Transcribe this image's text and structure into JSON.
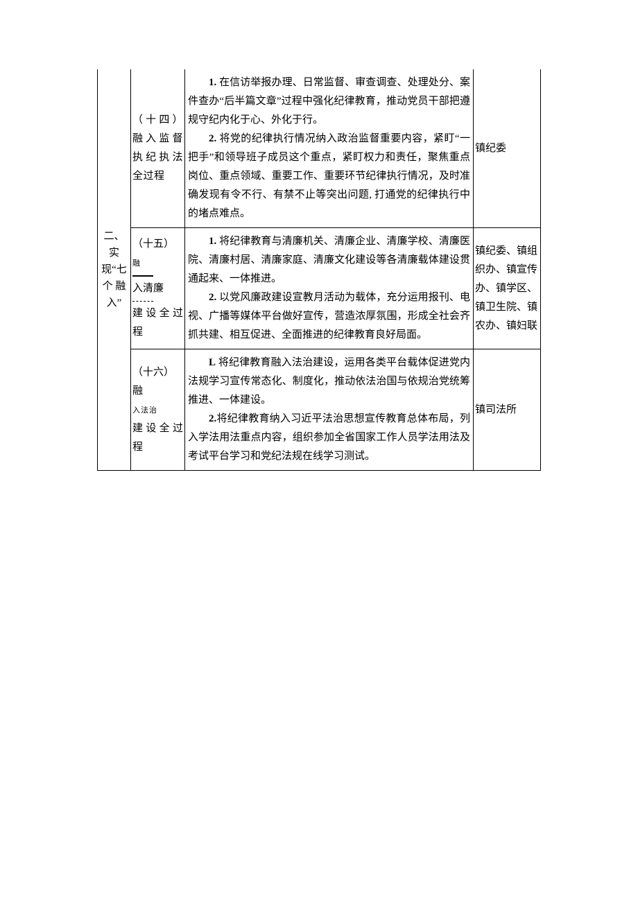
{
  "table": {
    "col1_label": "二、实\n现\"七\n个 融\n入\"",
    "rows": [
      {
        "col2_text": "（十四）融入监督执纪执法全过程",
        "col3_paragraphs": [
          "1. 在信访举报办理、日常监督、审查调查、处理处分、案件查办\"后半篇文章\"过程中强化纪律教育，推动党员干部把遵规守纪内化于心、外化于行。",
          "2. 将党的纪律执行情况纳入政治监督重要内容，紧盯\"一把手\"和领导班子成员这个重点，紧盯权力和责任，聚焦重点岗位、重点领域、重要工作、重要环节纪律执行情况，及时准确发现有令不行、有禁不止等突出问题, 打通党的纪律执行中的堵点难点。"
        ],
        "col4_text": "镇纪委"
      },
      {
        "col2_text": "（十五）融入清廉建设全过程",
        "col3_paragraphs": [
          "1. 将纪律教育与清廉机关、清廉企业、清廉学校、清廉医院、清廉村居、清廉家庭、清廉文化建设等各清廉载体建设贯通起来、一体推进。",
          "2. 以党风廉政建设宣教月活动为载体，充分运用报刊、电视、广播等媒体平台做好宣传，营造浓厚氛围，形成全社会齐抓共建、相互促进、全面推进的纪律教育良好局面。"
        ],
        "col4_text": "镇纪委、镇组织办、镇宣传办、镇学区、镇卫生院、镇农办、镇妇联"
      },
      {
        "col2_text": "（十六）融入法治建设全过程",
        "col3_paragraphs": [
          "L 将纪律教育融入法治建设，运用各类平台载体促进党内法规学习宣传常态化、制度化，推动依法治国与依规治党统筹推进、一体建设。",
          "2.将纪律教育纳入习近平法治思想宣传教育总体布局，列入学法用法重点内容，组织参加全省国家工作人员学法用法及考试平台学习和党纪法规在线学习测试。"
        ],
        "col4_text": "镇司法所"
      }
    ]
  }
}
